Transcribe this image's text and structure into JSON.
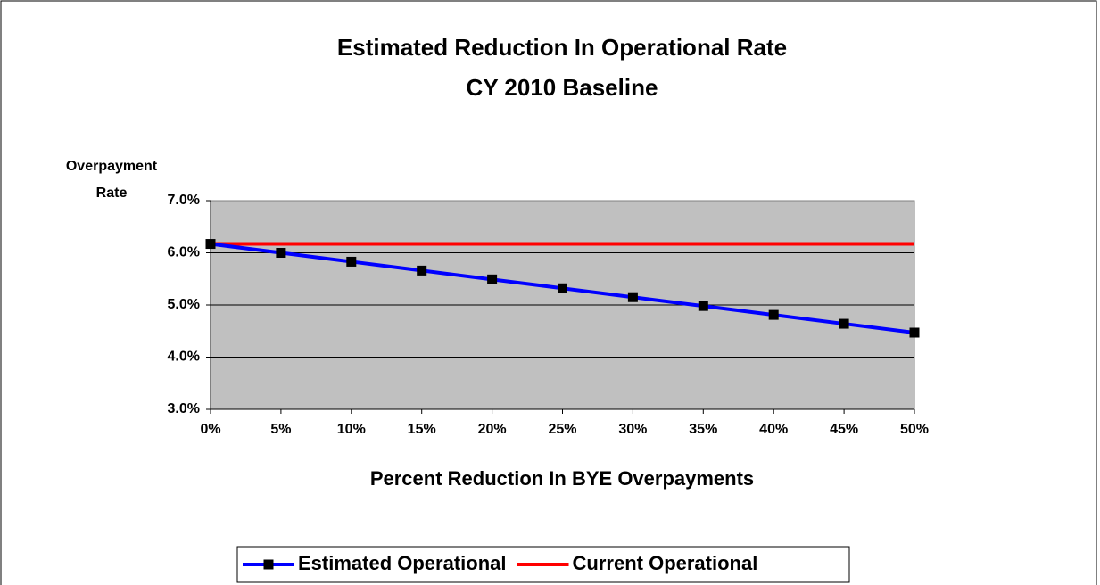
{
  "chart_data": {
    "type": "line",
    "title": "Estimated Reduction In Operational Rate",
    "subtitle": "CY 2010 Baseline",
    "y_label": [
      "Overpayment",
      "Rate"
    ],
    "x_label": "Percent Reduction In BYE Overpayments",
    "categories": [
      "0%",
      "5%",
      "10%",
      "15%",
      "20%",
      "25%",
      "30%",
      "35%",
      "40%",
      "45%",
      "50%"
    ],
    "series": [
      {
        "name": "Estimated Operational",
        "color": "#0000ff",
        "marker": "square",
        "values": [
          6.17,
          6.0,
          5.83,
          5.66,
          5.49,
          5.32,
          5.15,
          4.98,
          4.81,
          4.64,
          4.47
        ]
      },
      {
        "name": "Current Operational",
        "color": "#ff0000",
        "marker": "none",
        "values": [
          6.17,
          6.17,
          6.17,
          6.17,
          6.17,
          6.17,
          6.17,
          6.17,
          6.17,
          6.17,
          6.17
        ]
      }
    ],
    "ylim": [
      3,
      7
    ],
    "yticks": [
      {
        "value": 3,
        "label": "3.0%"
      },
      {
        "value": 4,
        "label": "4.0%"
      },
      {
        "value": 5,
        "label": "5.0%"
      },
      {
        "value": 6,
        "label": "6.0%"
      },
      {
        "value": 7,
        "label": "7.0%"
      }
    ],
    "grid": true,
    "legend": "bottom"
  }
}
